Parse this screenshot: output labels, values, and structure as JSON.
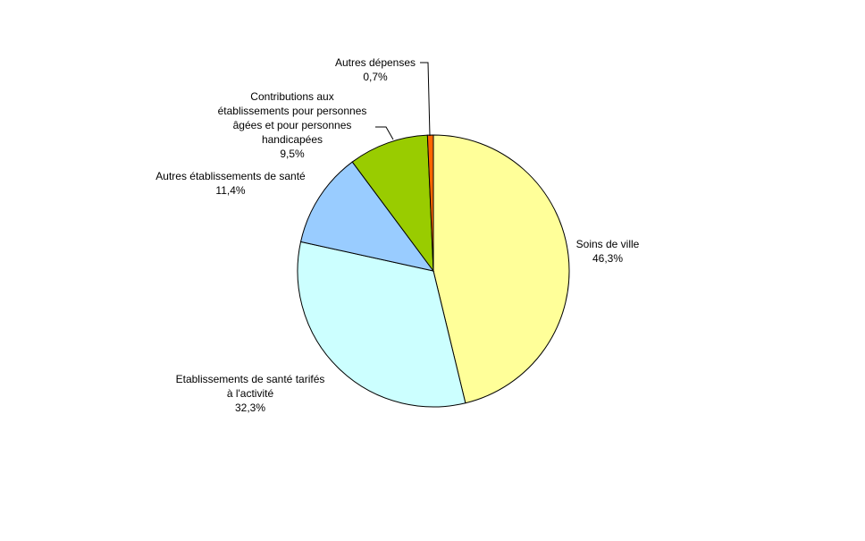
{
  "chart_data": {
    "type": "pie",
    "categories": [
      "Soins de ville",
      "Etablissements de santé tarifés\nà l'activité",
      "Autres établissements de santé",
      "Contributions aux\nétablissements pour personnes\nâgées et pour personnes\nhandicapées",
      "Autres dépenses"
    ],
    "values": [
      46.3,
      32.3,
      11.4,
      9.5,
      0.7
    ],
    "value_labels": [
      "46,3%",
      "32,3%",
      "11,4%",
      "9,5%",
      "0,7%"
    ],
    "colors": [
      "#FFFF99",
      "#CCFFFF",
      "#99CCFF",
      "#99CC00",
      "#FF6600"
    ]
  }
}
